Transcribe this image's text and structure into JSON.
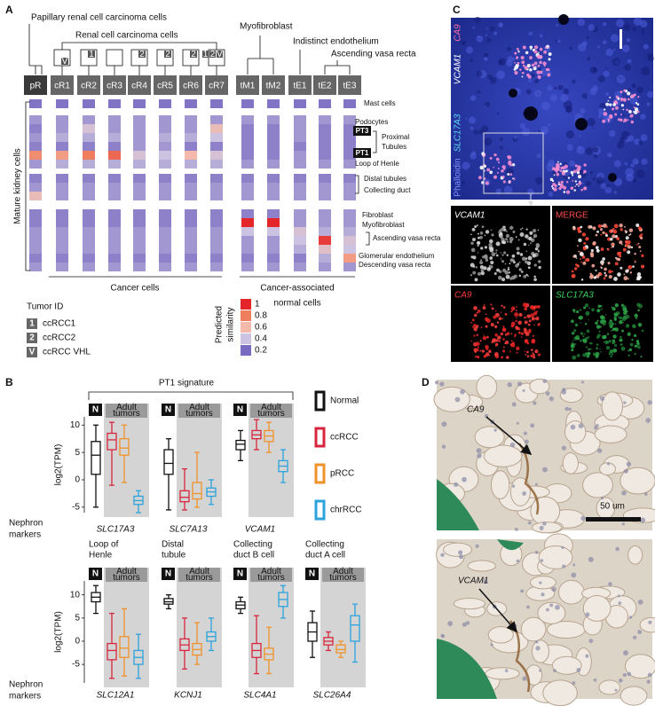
{
  "panel_a": {
    "label": "A",
    "top_labels": {
      "papillary": "Papillary renal cell carcinoma cells",
      "rcc": "Renal cell carcinoma cells",
      "myofibroblast": "Myofibroblast",
      "indistinct": "Indistinct endothelium",
      "avr": "Ascending vasa recta"
    },
    "columns": [
      "pR",
      "cR1",
      "cR2",
      "cR3",
      "cR4",
      "cR5",
      "cR6",
      "cR7",
      "tM1",
      "tM2",
      "tE1",
      "tE2",
      "tE3"
    ],
    "column_tags": [
      [],
      [
        "V"
      ],
      [
        "1"
      ],
      [],
      [
        "2"
      ],
      [
        "2"
      ],
      [
        "2"
      ],
      [
        "1",
        "2",
        "V"
      ],
      [],
      [],
      [],
      [],
      []
    ],
    "row_axis_label": "Mature kidney cells",
    "heatmap": [
      [
        0.22,
        0.22,
        0.22,
        0.22,
        0.22,
        0.22,
        0.22,
        0.22,
        0.22,
        0.22,
        0.22,
        0.22,
        0.22
      ],
      [
        0.3,
        0.3,
        0.3,
        0.3,
        0.3,
        0.3,
        0.3,
        0.3,
        0.3,
        0.3,
        0.3,
        0.3,
        0.3
      ],
      [
        0.25,
        0.3,
        0.45,
        0.3,
        0.3,
        0.3,
        0.3,
        0.55,
        0.25,
        0.25,
        0.3,
        0.25,
        0.25
      ],
      [
        0.3,
        0.35,
        0.35,
        0.35,
        0.3,
        0.35,
        0.35,
        0.4,
        0.25,
        0.25,
        0.3,
        0.25,
        0.25
      ],
      [
        0.25,
        0.25,
        0.25,
        0.25,
        0.3,
        0.3,
        0.25,
        0.25,
        0.25,
        0.25,
        0.25,
        0.25,
        0.25
      ],
      [
        0.75,
        0.7,
        0.8,
        0.85,
        0.45,
        0.4,
        0.6,
        0.45,
        0.25,
        0.25,
        0.3,
        0.25,
        0.25
      ],
      [
        0.3,
        0.35,
        0.35,
        0.35,
        0.35,
        0.35,
        0.35,
        0.35,
        0.3,
        0.3,
        0.3,
        0.3,
        0.3
      ],
      [
        0.25,
        0.25,
        0.25,
        0.25,
        0.25,
        0.25,
        0.25,
        0.25,
        0.25,
        0.25,
        0.25,
        0.25,
        0.25
      ],
      [
        0.3,
        0.3,
        0.3,
        0.3,
        0.3,
        0.3,
        0.3,
        0.3,
        0.3,
        0.3,
        0.3,
        0.3,
        0.3
      ],
      [
        0.55,
        0.3,
        0.3,
        0.3,
        0.3,
        0.3,
        0.3,
        0.3,
        0.3,
        0.3,
        0.3,
        0.3,
        0.3
      ],
      [
        0.25,
        0.25,
        0.25,
        0.25,
        0.25,
        0.25,
        0.25,
        0.25,
        0.25,
        0.25,
        0.3,
        0.3,
        0.3
      ],
      [
        0.25,
        0.25,
        0.25,
        0.25,
        0.25,
        0.25,
        0.25,
        0.25,
        1,
        1,
        0.3,
        0.3,
        0.3
      ],
      [
        0.3,
        0.3,
        0.3,
        0.3,
        0.3,
        0.3,
        0.3,
        0.3,
        0.4,
        0.4,
        0.45,
        0.35,
        0.35
      ],
      [
        0.3,
        0.3,
        0.3,
        0.3,
        0.3,
        0.3,
        0.3,
        0.3,
        0.3,
        0.3,
        0.4,
        0.95,
        0.45
      ],
      [
        0.3,
        0.3,
        0.3,
        0.3,
        0.3,
        0.3,
        0.3,
        0.3,
        0.3,
        0.3,
        0.35,
        0.5,
        0.4
      ],
      [
        0.25,
        0.25,
        0.25,
        0.25,
        0.25,
        0.25,
        0.25,
        0.25,
        0.25,
        0.25,
        0.25,
        0.35,
        0.7
      ],
      [
        0.3,
        0.3,
        0.3,
        0.3,
        0.3,
        0.3,
        0.3,
        0.3,
        0.3,
        0.3,
        0.3,
        0.3,
        0.3
      ]
    ],
    "row_labels": {
      "mast": "Mast cells",
      "podocytes": "Podocytes",
      "pt3": "PT3",
      "proximal": [
        "Proximal",
        "Tubules"
      ],
      "pt1": "PT1",
      "loop": "Loop of Henle",
      "distal": "Distal tubules",
      "collecting": "Collecting duct",
      "fibroblast": "Fibroblast",
      "myofibroblast": "Myofibroblast",
      "avr": "Ascending vasa recta",
      "glom": "Glomerular endothelium",
      "dvr": "Descending vasa recta"
    },
    "group_labels": {
      "cancer": "Cancer cells",
      "normal": [
        "Cancer-associated",
        "normal cells"
      ]
    },
    "legend": {
      "title": "Tumor ID",
      "items": [
        {
          "tag": "1",
          "label": "ccRCC1"
        },
        {
          "tag": "2",
          "label": "ccRCC2"
        },
        {
          "tag": "V",
          "label": "ccRCC VHL"
        }
      ]
    },
    "scale": {
      "title": [
        "Predicted",
        "similarity"
      ],
      "ticks": [
        1,
        0.8,
        0.6,
        0.4,
        0.2
      ],
      "colors": [
        "#e4262b",
        "#ef7e5e",
        "#f4b9aa",
        "#cbc3e1",
        "#7a6bc2"
      ]
    }
  },
  "panel_b": {
    "label": "B",
    "title": "PT1 signature",
    "y_label": "log2(TPM)",
    "row_label": [
      "Nephron",
      "markers"
    ],
    "header_n": "N",
    "header_tumors": [
      "Adult",
      "tumors"
    ],
    "groups": [
      {
        "name": "Normal",
        "tag": "N",
        "color": "#111111"
      },
      {
        "name": "ccRCC",
        "color": "#d7263d"
      },
      {
        "name": "pRCC",
        "color": "#f0922a"
      },
      {
        "name": "chrRCC",
        "color": "#2ba3dc"
      }
    ],
    "rows": [
      {
        "ylim": [
          -6,
          11.5
        ],
        "yticks": [
          -5,
          0,
          5,
          10
        ],
        "plots": [
          {
            "gene": "SLC17A3",
            "boxes": [
              [
                -5,
                1,
                4.5,
                7,
                10
              ],
              [
                -1,
                5.5,
                7.3,
                8.5,
                10.5
              ],
              [
                -0.5,
                4.5,
                5.8,
                7.5,
                10
              ],
              [
                -6,
                -4.5,
                -3.8,
                -3,
                -2
              ]
            ]
          },
          {
            "gene": "SLC7A13",
            "boxes": [
              [
                -5.5,
                1,
                3,
                5.5,
                7.5
              ],
              [
                -5.5,
                -4,
                -3.2,
                -2,
                2
              ],
              [
                -5,
                -3.5,
                -2.5,
                -0.5,
                5
              ],
              [
                -4.5,
                -3,
                -2.2,
                -1.5,
                0
              ]
            ]
          },
          {
            "gene": "VCAM1",
            "boxes": [
              [
                3.5,
                5.5,
                6.5,
                7.2,
                9
              ],
              [
                5.5,
                7.5,
                8.2,
                9,
                11
              ],
              [
                5,
                7,
                8,
                9,
                10.5
              ],
              [
                -0.5,
                1.5,
                2.5,
                3.5,
                5.5
              ]
            ]
          }
        ]
      },
      {
        "ylim": [
          -9,
          13
        ],
        "yticks": [
          -5,
          0,
          5,
          10
        ],
        "plots": [
          {
            "title": [
              "Loop of",
              "Henle"
            ],
            "gene": "SLC12A1",
            "boxes": [
              [
                6,
                8.5,
                9.5,
                10.5,
                12
              ],
              [
                -8,
                -4,
                -2,
                -0.5,
                6
              ],
              [
                -7.5,
                -3.5,
                -1.5,
                1,
                7
              ],
              [
                -8,
                -5,
                -3.5,
                -2,
                1.5
              ]
            ]
          },
          {
            "title": [
              "Distal",
              "tubule"
            ],
            "gene": "KCNJ1",
            "boxes": [
              [
                7,
                8,
                8.5,
                9.2,
                10
              ],
              [
                -6,
                -2,
                -0.8,
                0.5,
                5
              ],
              [
                -5,
                -3,
                -1.8,
                -0.5,
                4
              ],
              [
                -2,
                0,
                1,
                2,
                5
              ]
            ]
          },
          {
            "title": [
              "Collecting",
              "duct B cell"
            ],
            "gene": "SLC4A1",
            "boxes": [
              [
                6,
                7,
                7.8,
                8.5,
                9.5
              ],
              [
                -7,
                -3.5,
                -2,
                -0.5,
                5.5
              ],
              [
                -7,
                -4,
                -2.8,
                -1.5,
                3
              ],
              [
                5,
                7.5,
                9,
                10.5,
                12
              ]
            ]
          },
          {
            "title": [
              "Collecting",
              "duct A cell"
            ],
            "gene": "SLC26A4",
            "boxes": [
              [
                -3.5,
                0,
                2,
                4,
                6.5
              ],
              [
                -2,
                -0.8,
                0,
                0.8,
                2
              ],
              [
                -3.5,
                -2.5,
                -1.8,
                -0.8,
                0
              ],
              [
                -4.5,
                0,
                3.5,
                5.5,
                8
              ]
            ]
          }
        ]
      }
    ]
  },
  "panel_c": {
    "label": "C",
    "stains": [
      "CA9",
      "VCAM1",
      "SLC17A3",
      "Phalloidin"
    ],
    "panels": [
      "VCAM1",
      "MERGE",
      "CA9",
      "SLC17A3"
    ]
  },
  "panel_d": {
    "label": "D",
    "top_marker": "CA9",
    "bottom_marker": "VCAM1",
    "scale_bar": "50 um"
  }
}
